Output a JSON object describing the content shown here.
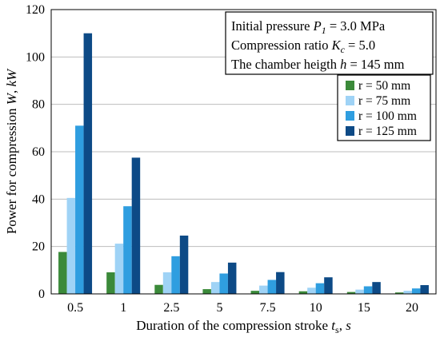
{
  "chart_data": {
    "type": "bar",
    "categories": [
      "0.5",
      "1",
      "2.5",
      "5",
      "7.5",
      "10",
      "15",
      "20"
    ],
    "series": [
      {
        "name": "r = 50 mm",
        "color": "#3b8a3a",
        "values": [
          17.7,
          9.1,
          3.8,
          2.0,
          1.3,
          1.1,
          0.8,
          0.6
        ]
      },
      {
        "name": "r = 75 mm",
        "color": "#9fd3f6",
        "values": [
          40.5,
          21.2,
          9.1,
          5.0,
          3.5,
          2.6,
          1.8,
          1.3
        ]
      },
      {
        "name": "r = 100 mm",
        "color": "#2f9ee0",
        "values": [
          71.0,
          37.0,
          15.9,
          8.6,
          5.9,
          4.5,
          3.2,
          2.3
        ]
      },
      {
        "name": "r = 125 mm",
        "color": "#0d4a86",
        "values": [
          110.0,
          57.5,
          24.6,
          13.2,
          9.2,
          7.0,
          5.0,
          3.7
        ]
      }
    ],
    "yticks": [
      "0",
      "20",
      "40",
      "60",
      "80",
      "100",
      "120"
    ],
    "ylim": [
      0,
      120
    ],
    "grid": "horizontal",
    "legend_position": "right",
    "xlabel": {
      "main": "Duration of the compression stroke ",
      "var": "t",
      "sub": "s",
      "sep": ", ",
      "unit": "s"
    },
    "ylabel": {
      "main": "Power for compression ",
      "var": "W",
      "sep": ", ",
      "unit": "kW"
    },
    "info": [
      {
        "prefix": "Initial pressure ",
        "var": "P",
        "sub": "1",
        "suffix": " = 3.0 MPa"
      },
      {
        "prefix": "Compression ratio ",
        "var": "K",
        "sub": "c",
        "suffix": " = 5.0"
      },
      {
        "prefix": "The chamber heigth ",
        "var": "h",
        "sub": "",
        "suffix": " = 145 mm"
      }
    ]
  }
}
